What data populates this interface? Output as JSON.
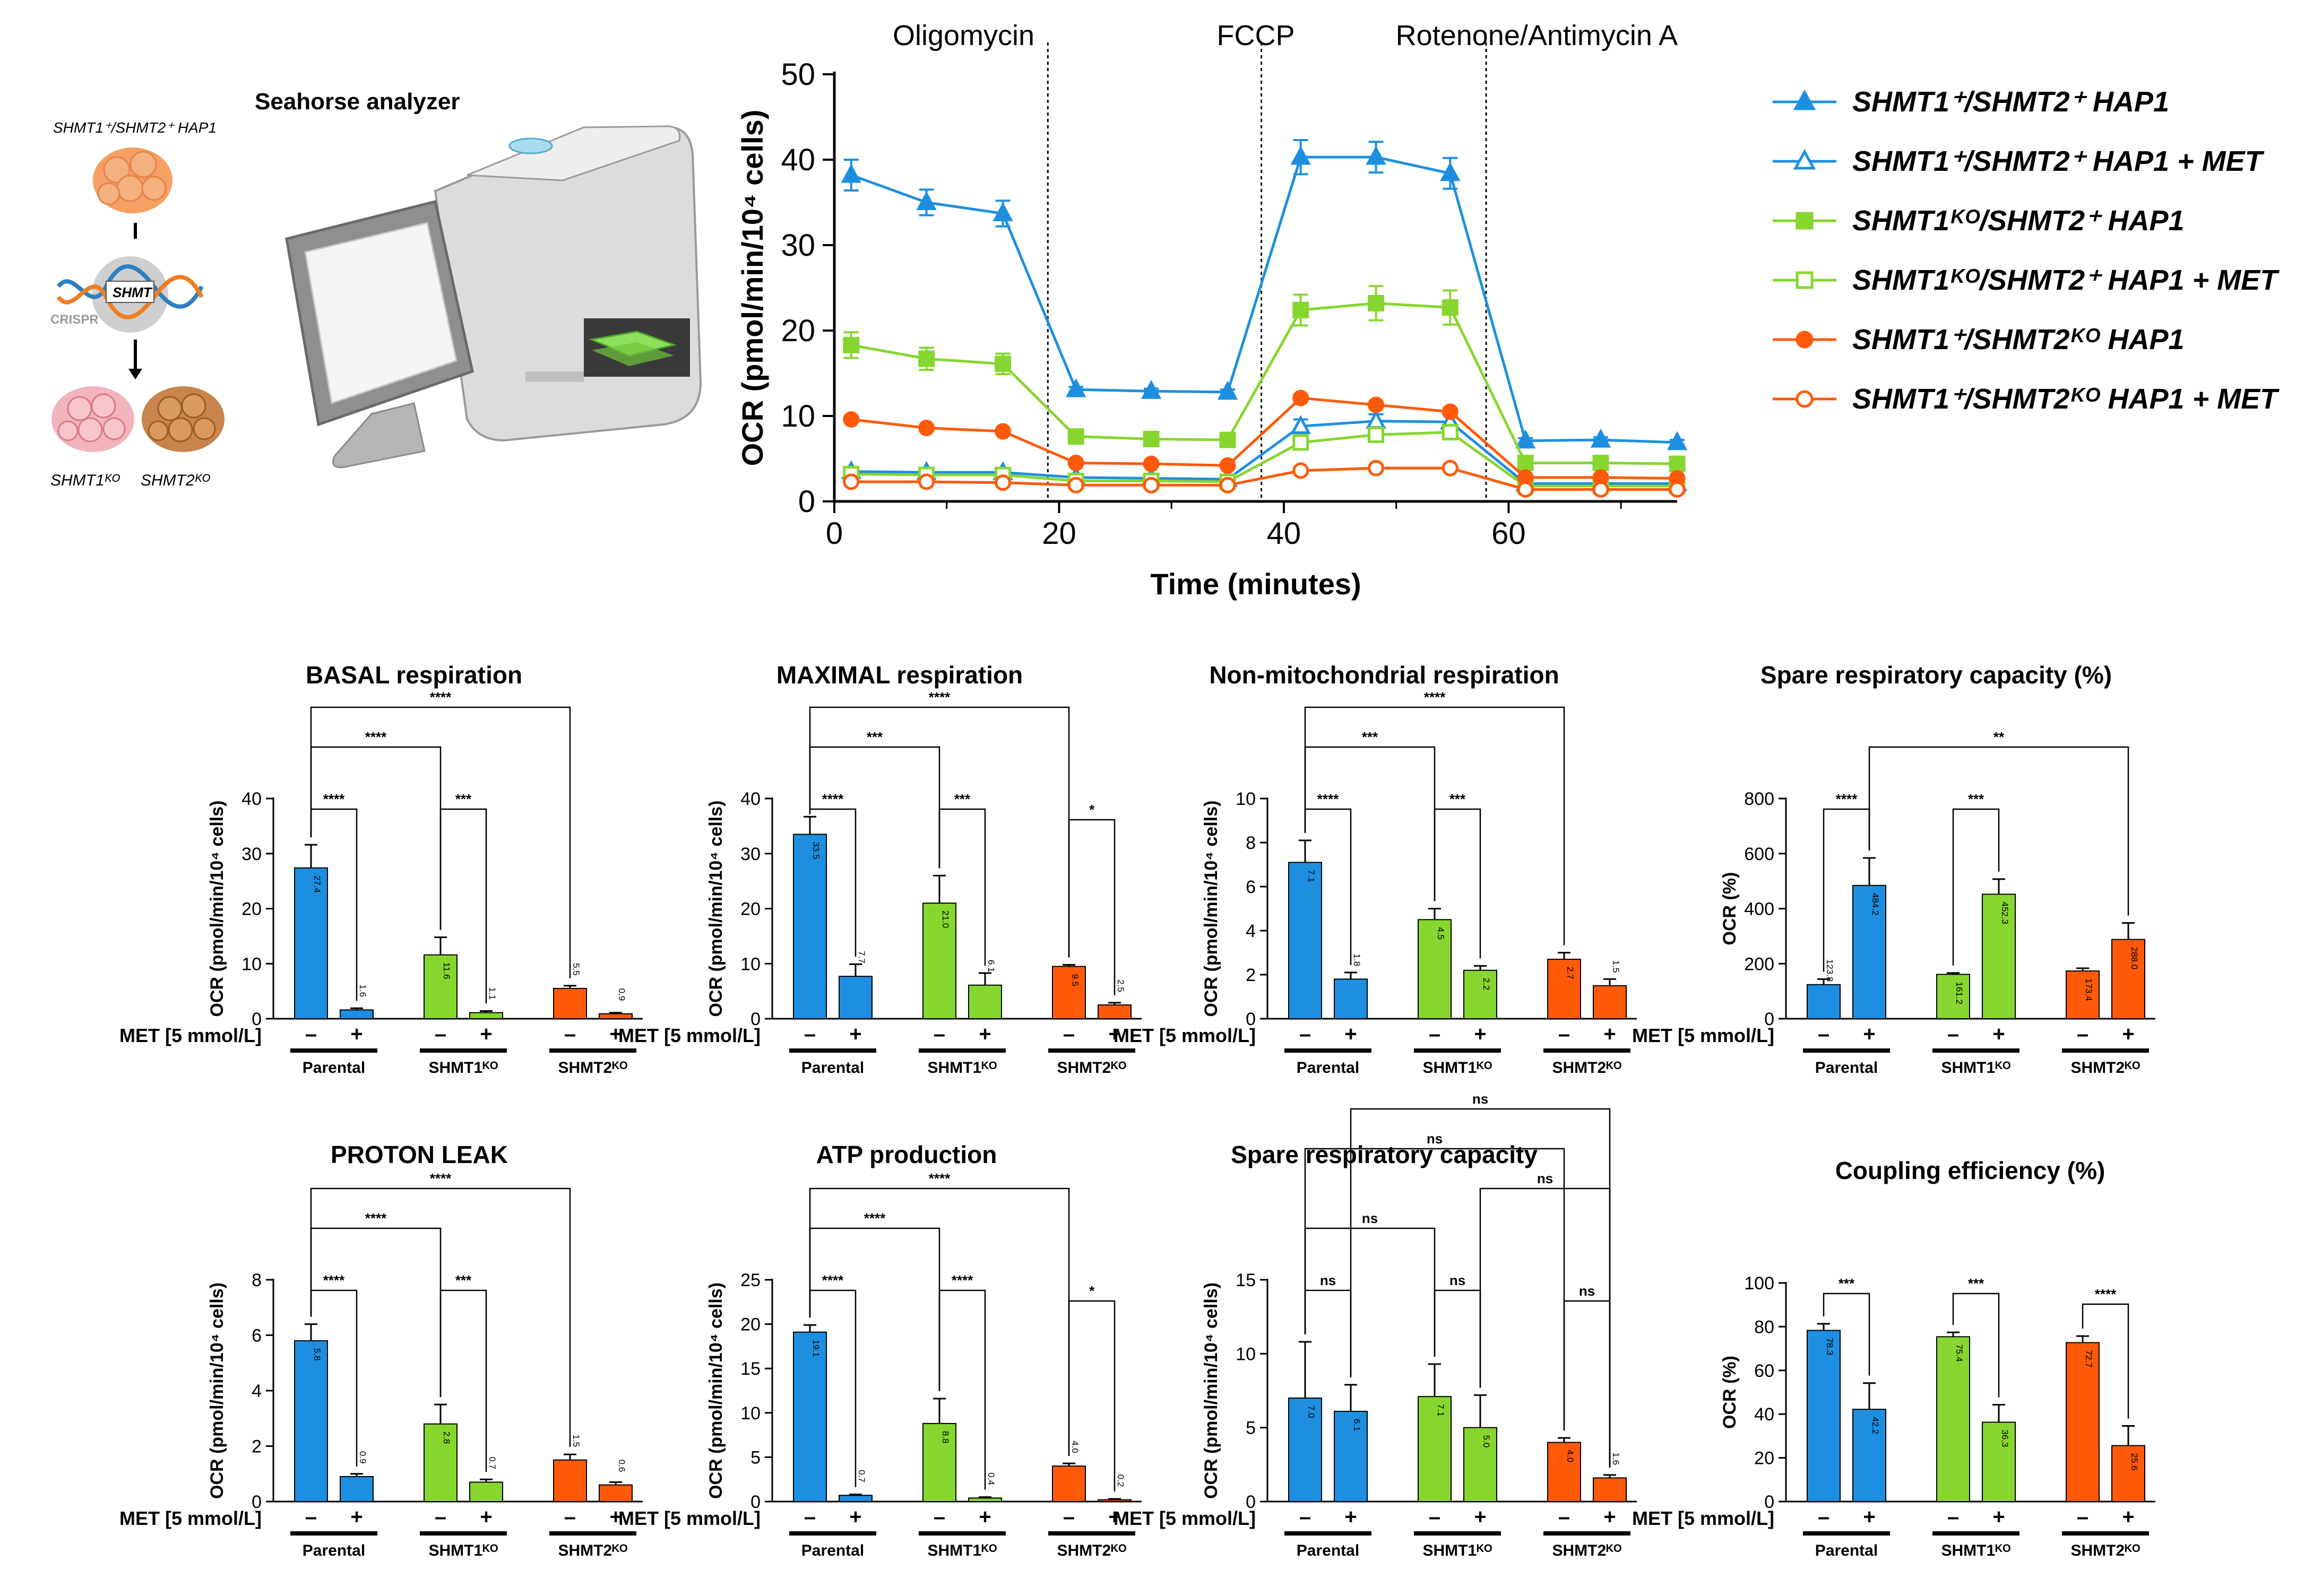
{
  "colors": {
    "blue": "#1E8FE0",
    "green": "#86D62F",
    "orange": "#FF5A0A",
    "black": "#000000",
    "gray_machine": "#d9d9d9"
  },
  "schematic": {
    "title": "Seahorse analyzer",
    "cell_line_label": "SHMT1⁺/SHMT2⁺ HAP1",
    "gene_label": "SHMT",
    "crispr_label": "CRISPR",
    "ko1_label": "SHMT1ᴷᴼ",
    "ko2_label": "SHMT2ᴷᴼ"
  },
  "chart_data": [
    {
      "id": "timecourse",
      "type": "line",
      "title": "",
      "xlabel": "Time (minutes)",
      "ylabel": "OCR (pmol/min/10⁴ cells)",
      "xlim": [
        0,
        75
      ],
      "ylim": [
        0,
        50
      ],
      "xticks": [
        0,
        20,
        40,
        60
      ],
      "yticks": [
        0,
        10,
        20,
        30,
        40,
        50
      ],
      "injections": [
        {
          "x": 19,
          "label": "Oligomycin"
        },
        {
          "x": 38,
          "label": "FCCP"
        },
        {
          "x": 58,
          "label": "Rotenone/Antimycin  A"
        }
      ],
      "x": [
        1.5,
        8.2,
        15,
        21.5,
        28.2,
        35,
        41.5,
        48.2,
        54.8,
        61.5,
        68.2,
        75
      ],
      "series": [
        {
          "name": "SHMT1⁺/SHMT2⁺ HAP1",
          "color": "blue",
          "marker": "triangle",
          "filled": true,
          "values": [
            38.2,
            35,
            33.7,
            13.1,
            12.9,
            12.8,
            40.3,
            40.3,
            38.4,
            7.1,
            7.2,
            6.9
          ],
          "errors": [
            1.8,
            1.5,
            1.5,
            0.3,
            0.3,
            0.3,
            2,
            1.8,
            1.8,
            0.3,
            0.3,
            0.3
          ]
        },
        {
          "name": "SHMT1⁺/SHMT2⁺ HAP1 + MET",
          "color": "blue",
          "marker": "triangle",
          "filled": false,
          "values": [
            3.5,
            3.4,
            3.4,
            2.8,
            2.7,
            2.6,
            8.8,
            9.4,
            9.3,
            2.1,
            2.1,
            2.1
          ],
          "errors": [
            0.3,
            0.3,
            0.3,
            0.2,
            0.2,
            0.2,
            0.8,
            0.8,
            0.8,
            0.2,
            0.2,
            0.2
          ]
        },
        {
          "name": "SHMT1ᴷᴼ/SHMT2⁺ HAP1",
          "color": "green",
          "marker": "square",
          "filled": true,
          "values": [
            18.3,
            16.7,
            16.1,
            7.6,
            7.3,
            7.2,
            22.4,
            23.2,
            22.7,
            4.5,
            4.5,
            4.4
          ],
          "errors": [
            1.5,
            1.3,
            1.2,
            0.3,
            0.3,
            0.3,
            1.8,
            2,
            2,
            0.3,
            0.3,
            0.3
          ]
        },
        {
          "name": "SHMT1ᴷᴼ/SHMT2⁺ HAP1 + MET",
          "color": "green",
          "marker": "square",
          "filled": false,
          "values": [
            3.2,
            3.1,
            3.1,
            2.4,
            2.4,
            2.3,
            6.9,
            7.8,
            8.1,
            1.8,
            1.8,
            1.8
          ],
          "errors": [
            0.3,
            0.3,
            0.3,
            0.2,
            0.2,
            0.2,
            0.7,
            0.8,
            0.8,
            0.2,
            0.2,
            0.2
          ]
        },
        {
          "name": "SHMT1⁺/SHMT2ᴷᴼ HAP1",
          "color": "orange",
          "marker": "circle",
          "filled": true,
          "values": [
            9.6,
            8.6,
            8.2,
            4.5,
            4.4,
            4.2,
            12.1,
            11.3,
            10.5,
            2.8,
            2.8,
            2.7
          ],
          "errors": [
            0.3,
            0.3,
            0.3,
            0.2,
            0.2,
            0.2,
            0.4,
            0.4,
            0.4,
            0.2,
            0.2,
            0.2
          ]
        },
        {
          "name": "SHMT1⁺/SHMT2ᴷᴼ HAP1 + MET",
          "color": "orange",
          "marker": "circle",
          "filled": false,
          "values": [
            2.3,
            2.3,
            2.2,
            1.9,
            1.9,
            1.9,
            3.6,
            3.9,
            3.9,
            1.4,
            1.4,
            1.4
          ],
          "errors": [
            0.2,
            0.2,
            0.2,
            0.2,
            0.2,
            0.2,
            0.3,
            0.3,
            0.3,
            0.1,
            0.1,
            0.1
          ]
        }
      ]
    },
    {
      "id": "basal",
      "type": "bar",
      "title": "BASAL respiration",
      "ylabel": "OCR (pmol/min/10⁴ cells)",
      "ylim": [
        0,
        40
      ],
      "yticks": [
        0,
        10,
        20,
        30,
        40
      ],
      "groups": [
        "Parental",
        "SHMT1ᴷᴼ",
        "SHMT2ᴷᴼ"
      ],
      "conditions": [
        "–",
        "+"
      ],
      "xlabel": "MET [5 mmol/L]",
      "values": [
        [
          27.4,
          1.6
        ],
        [
          11.6,
          1.1
        ],
        [
          5.5,
          0.9
        ]
      ],
      "errors": [
        [
          4.2,
          0.3
        ],
        [
          3.2,
          0.3
        ],
        [
          0.5,
          0.2
        ]
      ],
      "value_labels": [
        [
          "27.4",
          "1.6"
        ],
        [
          "11.6",
          "1.1"
        ],
        [
          "5.5",
          "0.9"
        ]
      ],
      "comparisons": [
        {
          "from": [
            0,
            0
          ],
          "to": [
            0,
            1
          ],
          "label": "****"
        },
        {
          "from": [
            0,
            0
          ],
          "to": [
            1,
            0
          ],
          "label": "****"
        },
        {
          "from": [
            1,
            0
          ],
          "to": [
            1,
            1
          ],
          "label": "***"
        },
        {
          "from": [
            0,
            0
          ],
          "to": [
            2,
            0
          ],
          "label": "****"
        }
      ]
    },
    {
      "id": "maximal",
      "type": "bar",
      "title": "MAXIMAL respiration",
      "ylabel": "OCR (pmol/min/10⁴ cells)",
      "ylim": [
        0,
        40
      ],
      "yticks": [
        0,
        10,
        20,
        30,
        40
      ],
      "groups": [
        "Parental",
        "SHMT1ᴷᴼ",
        "SHMT2ᴷᴼ"
      ],
      "conditions": [
        "–",
        "+"
      ],
      "xlabel": "MET [5 mmol/L]",
      "values": [
        [
          33.5,
          7.7
        ],
        [
          21.0,
          6.1
        ],
        [
          9.5,
          2.5
        ]
      ],
      "errors": [
        [
          3.2,
          2.2
        ],
        [
          5,
          2.2
        ],
        [
          0.3,
          0.4
        ]
      ],
      "value_labels": [
        [
          "33.5",
          "7.7"
        ],
        [
          "21.0",
          "6.1"
        ],
        [
          "9.5",
          "2.5"
        ]
      ],
      "comparisons": [
        {
          "from": [
            0,
            0
          ],
          "to": [
            0,
            1
          ],
          "label": "****"
        },
        {
          "from": [
            0,
            0
          ],
          "to": [
            1,
            0
          ],
          "label": "***"
        },
        {
          "from": [
            1,
            0
          ],
          "to": [
            1,
            1
          ],
          "label": "***"
        },
        {
          "from": [
            2,
            0
          ],
          "to": [
            2,
            1
          ],
          "label": "*"
        },
        {
          "from": [
            0,
            0
          ],
          "to": [
            2,
            0
          ],
          "label": "****"
        }
      ]
    },
    {
      "id": "nonmito",
      "type": "bar",
      "title": "Non-mitochondrial  respiration",
      "ylabel": "OCR (pmol/min/10⁴ cells)",
      "ylim": [
        0,
        10
      ],
      "yticks": [
        0,
        2,
        4,
        6,
        8,
        10
      ],
      "groups": [
        "Parental",
        "SHMT1ᴷᴼ",
        "SHMT2ᴷᴼ"
      ],
      "conditions": [
        "–",
        "+"
      ],
      "xlabel": "MET [5 mmol/L]",
      "values": [
        [
          7.1,
          1.8
        ],
        [
          4.5,
          2.2
        ],
        [
          2.7,
          1.5
        ]
      ],
      "errors": [
        [
          1.0,
          0.3
        ],
        [
          0.5,
          0.2
        ],
        [
          0.3,
          0.3
        ]
      ],
      "value_labels": [
        [
          "7.1",
          "1.8"
        ],
        [
          "4.5",
          "2.2"
        ],
        [
          "2.7",
          "1.5"
        ]
      ],
      "comparisons": [
        {
          "from": [
            0,
            0
          ],
          "to": [
            0,
            1
          ],
          "label": "****"
        },
        {
          "from": [
            0,
            0
          ],
          "to": [
            1,
            0
          ],
          "label": "***"
        },
        {
          "from": [
            1,
            0
          ],
          "to": [
            1,
            1
          ],
          "label": "***"
        },
        {
          "from": [
            0,
            0
          ],
          "to": [
            2,
            0
          ],
          "label": "****"
        }
      ]
    },
    {
      "id": "spare_pct",
      "type": "bar",
      "title": "Spare respiratory capacity (%)",
      "ylabel": "OCR (%)",
      "ylim": [
        0,
        800
      ],
      "yticks": [
        0,
        200,
        400,
        600,
        800
      ],
      "groups": [
        "Parental",
        "SHMT1ᴷᴼ",
        "SHMT2ᴷᴼ"
      ],
      "conditions": [
        "–",
        "+"
      ],
      "xlabel": "MET [5 mmol/L]",
      "values": [
        [
          123.8,
          484.2
        ],
        [
          161.2,
          452.3
        ],
        [
          173.4,
          288.0
        ]
      ],
      "errors": [
        [
          20,
          100
        ],
        [
          5,
          55
        ],
        [
          10,
          60
        ]
      ],
      "value_labels": [
        [
          "123.8",
          "484.2"
        ],
        [
          "161.2",
          "452.3"
        ],
        [
          "173.4",
          "288.0"
        ]
      ],
      "comparisons": [
        {
          "from": [
            0,
            0
          ],
          "to": [
            0,
            1
          ],
          "label": "****"
        },
        {
          "from": [
            1,
            0
          ],
          "to": [
            1,
            1
          ],
          "label": "***"
        },
        {
          "from": [
            0,
            1
          ],
          "to": [
            2,
            1
          ],
          "label": "**"
        }
      ]
    },
    {
      "id": "proton",
      "type": "bar",
      "title": "PROTON LEAK",
      "ylabel": "OCR (pmol/min/10⁴ cells)",
      "ylim": [
        0,
        8
      ],
      "yticks": [
        0,
        2,
        4,
        6,
        8
      ],
      "groups": [
        "Parental",
        "SHMT1ᴷᴼ",
        "SHMT2ᴷᴼ"
      ],
      "conditions": [
        "–",
        "+"
      ],
      "xlabel": "MET [5 mmol/L]",
      "values": [
        [
          5.8,
          0.9
        ],
        [
          2.8,
          0.7
        ],
        [
          1.5,
          0.6
        ]
      ],
      "errors": [
        [
          0.6,
          0.1
        ],
        [
          0.7,
          0.1
        ],
        [
          0.2,
          0.1
        ]
      ],
      "value_labels": [
        [
          "5.8",
          "0.9"
        ],
        [
          "2.8",
          "0.7"
        ],
        [
          "1.5",
          "0.6"
        ]
      ],
      "comparisons": [
        {
          "from": [
            0,
            0
          ],
          "to": [
            0,
            1
          ],
          "label": "****"
        },
        {
          "from": [
            0,
            0
          ],
          "to": [
            1,
            0
          ],
          "label": "****"
        },
        {
          "from": [
            1,
            0
          ],
          "to": [
            1,
            1
          ],
          "label": "***"
        },
        {
          "from": [
            0,
            0
          ],
          "to": [
            2,
            0
          ],
          "label": "****"
        }
      ]
    },
    {
      "id": "atp",
      "type": "bar",
      "title": "ATP production",
      "ylabel": "OCR (pmol/min/10⁴ cells)",
      "ylim": [
        0,
        25
      ],
      "yticks": [
        0,
        5,
        10,
        15,
        20,
        25
      ],
      "groups": [
        "Parental",
        "SHMT1ᴷᴼ",
        "SHMT2ᴷᴼ"
      ],
      "conditions": [
        "–",
        "+"
      ],
      "xlabel": "MET [5 mmol/L]",
      "values": [
        [
          19.1,
          0.7
        ],
        [
          8.8,
          0.4
        ],
        [
          4.0,
          0.2
        ]
      ],
      "errors": [
        [
          0.8,
          0.1
        ],
        [
          2.8,
          0.1
        ],
        [
          0.3,
          0.1
        ]
      ],
      "value_labels": [
        [
          "19.1",
          "0.7"
        ],
        [
          "8.8",
          "0.4"
        ],
        [
          "4.0",
          "0.2"
        ]
      ],
      "comparisons": [
        {
          "from": [
            0,
            0
          ],
          "to": [
            0,
            1
          ],
          "label": "****"
        },
        {
          "from": [
            0,
            0
          ],
          "to": [
            1,
            0
          ],
          "label": "****"
        },
        {
          "from": [
            1,
            0
          ],
          "to": [
            1,
            1
          ],
          "label": "****"
        },
        {
          "from": [
            2,
            0
          ],
          "to": [
            2,
            1
          ],
          "label": "*"
        },
        {
          "from": [
            0,
            0
          ],
          "to": [
            2,
            0
          ],
          "label": "****"
        }
      ]
    },
    {
      "id": "spare_abs",
      "type": "bar",
      "title": "Spare respiratory capacity",
      "ylabel": "OCR (pmol/min/10⁴ cells)",
      "ylim": [
        0,
        15
      ],
      "yticks": [
        0,
        5,
        10,
        15
      ],
      "groups": [
        "Parental",
        "SHMT1ᴷᴼ",
        "SHMT2ᴷᴼ"
      ],
      "conditions": [
        "–",
        "+"
      ],
      "xlabel": "MET [5 mmol/L]",
      "values": [
        [
          7.0,
          6.1
        ],
        [
          7.1,
          5.0
        ],
        [
          4.0,
          1.6
        ]
      ],
      "errors": [
        [
          3.8,
          1.8
        ],
        [
          2.2,
          2.2
        ],
        [
          0.3,
          0.2
        ]
      ],
      "value_labels": [
        [
          "7.0",
          "6.1"
        ],
        [
          "7.1",
          "5.0"
        ],
        [
          "4.0",
          "1.6"
        ]
      ],
      "comparisons": [
        {
          "from": [
            0,
            0
          ],
          "to": [
            0,
            1
          ],
          "label": "ns"
        },
        {
          "from": [
            1,
            0
          ],
          "to": [
            1,
            1
          ],
          "label": "ns"
        },
        {
          "from": [
            2,
            0
          ],
          "to": [
            2,
            1
          ],
          "label": "ns"
        },
        {
          "from": [
            0,
            0
          ],
          "to": [
            1,
            0
          ],
          "label": "ns"
        },
        {
          "from": [
            1,
            1
          ],
          "to": [
            2,
            1
          ],
          "label": "ns"
        },
        {
          "from": [
            0,
            0
          ],
          "to": [
            2,
            0
          ],
          "label": "ns"
        },
        {
          "from": [
            0,
            1
          ],
          "to": [
            2,
            1
          ],
          "label": "ns"
        }
      ]
    },
    {
      "id": "coupling",
      "type": "bar",
      "title": "Coupling efficiency (%)",
      "ylabel": "OCR (%)",
      "ylim": [
        0,
        100
      ],
      "yticks": [
        0,
        20,
        40,
        60,
        80,
        100
      ],
      "groups": [
        "Parental",
        "SHMT1ᴷᴼ",
        "SHMT2ᴷᴼ"
      ],
      "conditions": [
        "–",
        "+"
      ],
      "xlabel": "MET [5 mmol/L]",
      "values": [
        [
          78.3,
          42.2
        ],
        [
          75.4,
          36.3
        ],
        [
          72.7,
          25.6
        ]
      ],
      "errors": [
        [
          3,
          12
        ],
        [
          2,
          8
        ],
        [
          3,
          9
        ]
      ],
      "value_labels": [
        [
          "78.3",
          "42.2"
        ],
        [
          "75.4",
          "36.3"
        ],
        [
          "72.7",
          "25.6"
        ]
      ],
      "comparisons": [
        {
          "from": [
            0,
            0
          ],
          "to": [
            0,
            1
          ],
          "label": "***"
        },
        {
          "from": [
            1,
            0
          ],
          "to": [
            1,
            1
          ],
          "label": "***"
        },
        {
          "from": [
            2,
            0
          ],
          "to": [
            2,
            1
          ],
          "label": "****"
        }
      ]
    }
  ]
}
